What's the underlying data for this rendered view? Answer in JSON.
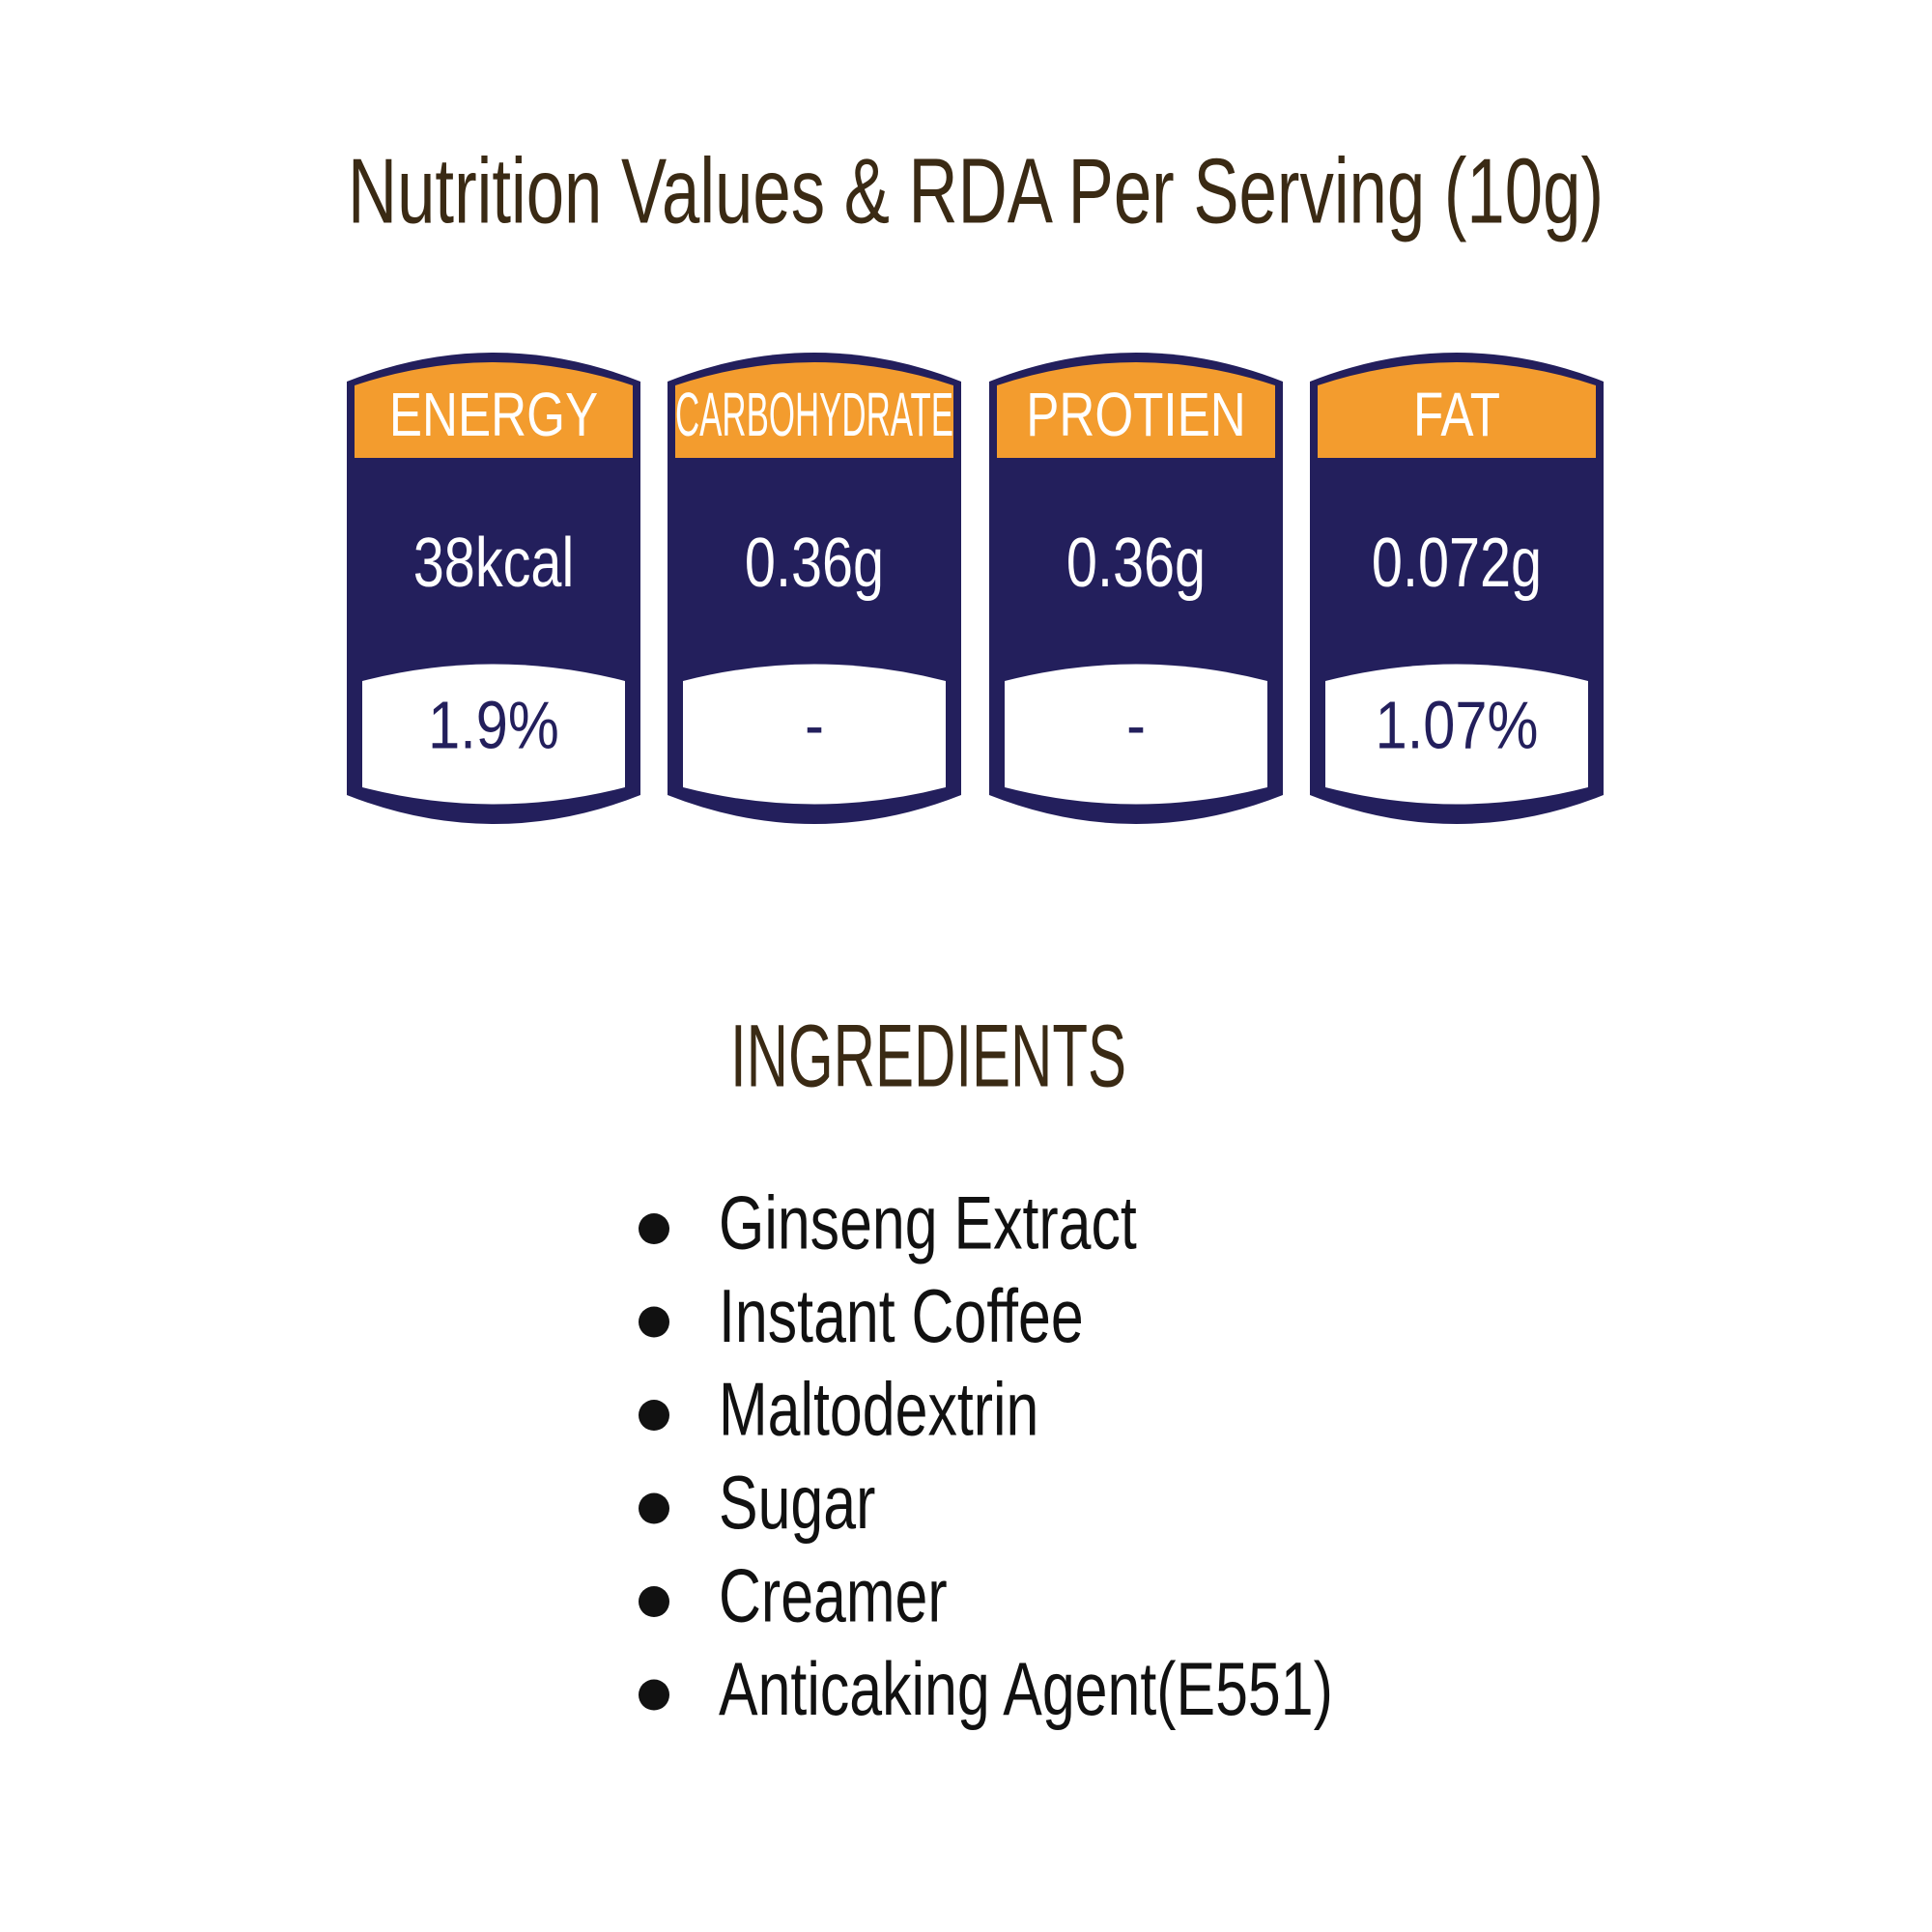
{
  "title": "Nutrition Values & RDA Per Serving (10g)",
  "nutrients": [
    {
      "name": "ENERGY",
      "amount": "38kcal",
      "rda": "1.9%"
    },
    {
      "name": "CARBOHYDRATE",
      "amount": "0.36g",
      "rda": "-"
    },
    {
      "name": "PROTIEN",
      "amount": "0.36g",
      "rda": "-"
    },
    {
      "name": "FAT",
      "amount": "0.072g",
      "rda": "1.07%"
    }
  ],
  "ingredients": {
    "title": "INGREDIENTS",
    "items": [
      "Ginseng Extract",
      "Instant Coffee",
      "Maltodextrin",
      "Sugar",
      "Creamer",
      "Anticaking Agent(E551)"
    ]
  }
}
